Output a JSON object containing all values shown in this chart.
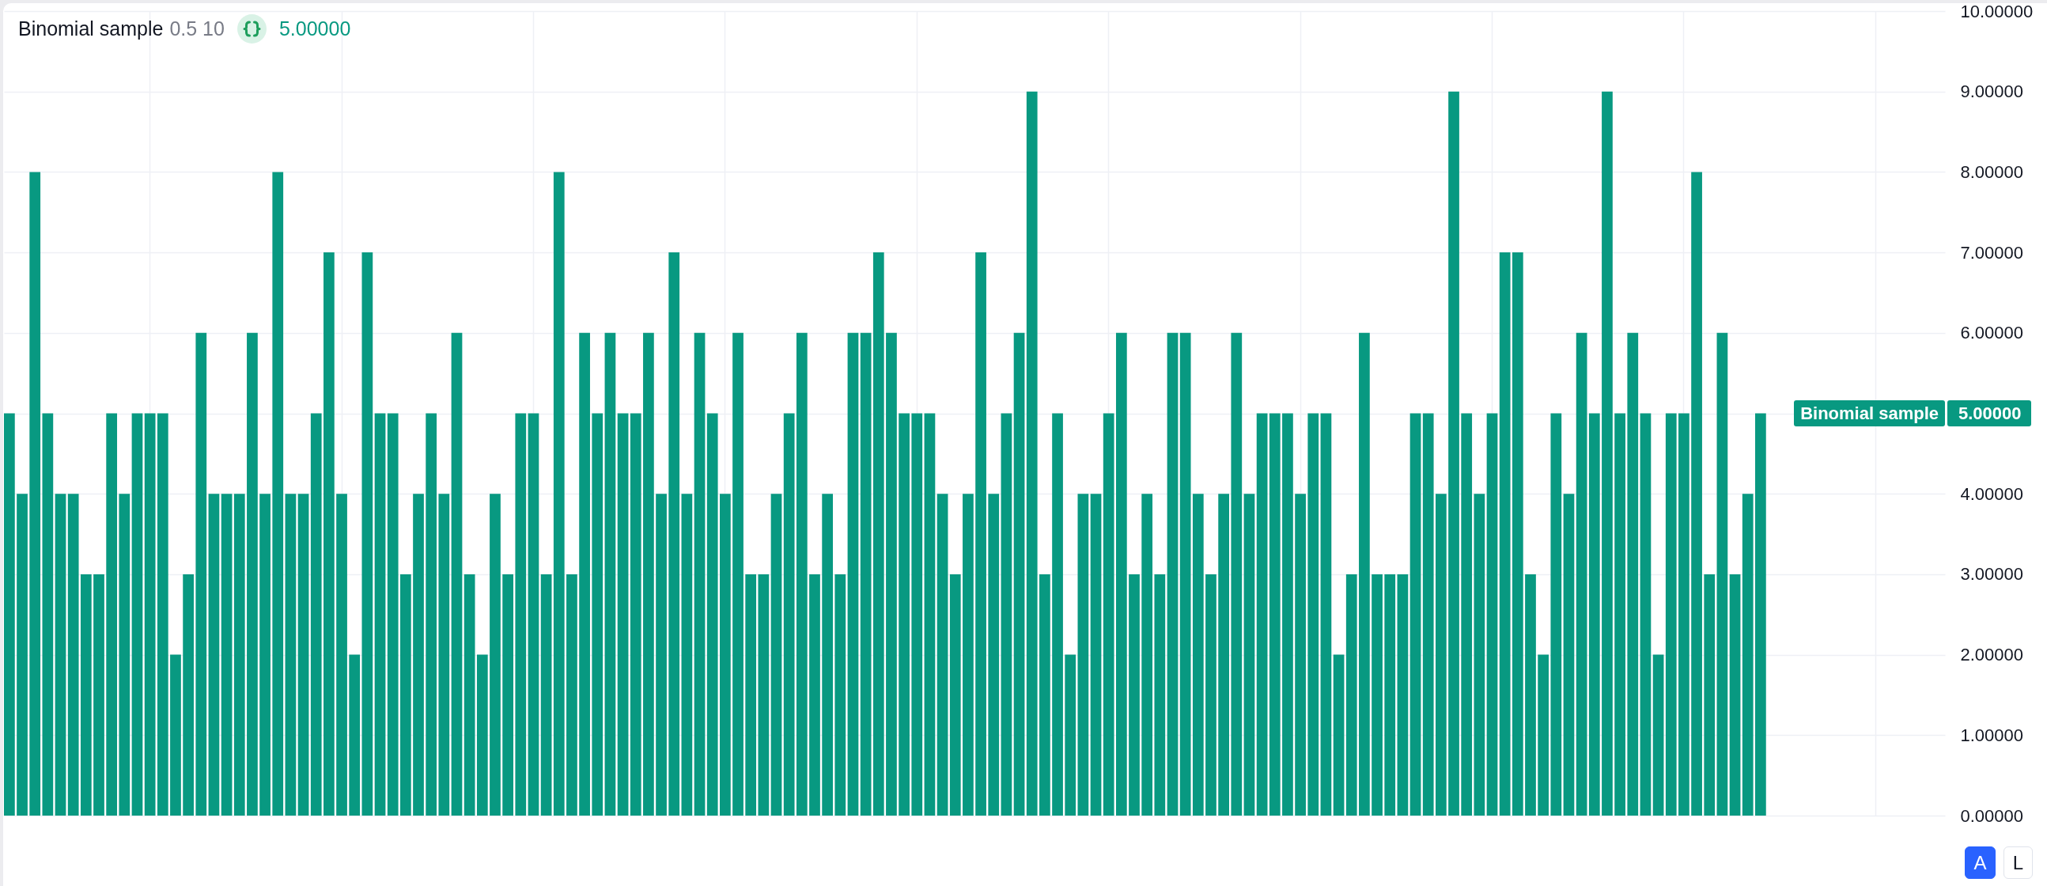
{
  "chart_data": {
    "type": "bar",
    "title": "Binomial sample",
    "subtitle": "0.5 10",
    "categories": [
      null,
      null,
      null,
      null,
      null,
      null,
      null,
      null,
      null,
      null,
      null,
      null,
      null,
      null,
      null,
      null,
      null,
      null,
      null,
      null,
      null,
      null,
      null,
      null,
      null,
      null,
      null,
      null,
      null,
      null,
      null,
      null,
      null,
      null,
      null,
      null,
      null,
      null,
      null,
      null,
      null,
      null,
      null,
      null,
      null,
      null,
      null,
      null,
      null,
      null,
      null,
      null,
      null,
      null,
      null,
      null,
      null,
      null,
      null,
      null,
      null,
      null,
      null,
      null,
      null,
      null,
      null,
      null,
      null,
      null,
      null,
      null,
      null,
      null,
      null,
      null,
      null,
      null,
      null,
      null,
      null,
      null,
      null,
      null,
      null,
      null,
      null,
      null,
      null,
      null,
      null,
      null,
      null,
      null,
      null,
      null,
      null,
      null,
      null,
      null,
      null,
      null,
      null,
      null,
      null,
      null,
      null,
      null,
      null,
      null,
      null,
      null,
      null,
      null,
      null,
      null,
      null,
      null,
      null,
      null,
      null,
      null,
      null,
      null,
      null,
      null,
      null,
      null,
      null,
      null,
      null,
      null,
      null,
      null,
      null,
      null,
      null,
      null,
      null,
      null,
      null,
      null,
      null,
      null,
      null,
      null,
      null,
      null,
      null,
      null,
      null,
      null
    ],
    "values": [
      5,
      4,
      8,
      5,
      4,
      4,
      3,
      3,
      5,
      4,
      5,
      5,
      5,
      2,
      3,
      6,
      4,
      4,
      4,
      6,
      4,
      8,
      4,
      4,
      5,
      7,
      4,
      2,
      7,
      5,
      5,
      3,
      4,
      5,
      4,
      6,
      3,
      2,
      4,
      3,
      5,
      5,
      3,
      8,
      3,
      6,
      5,
      6,
      5,
      5,
      6,
      4,
      7,
      4,
      6,
      5,
      4,
      6,
      3,
      3,
      4,
      5,
      6,
      3,
      4,
      3,
      6,
      6,
      7,
      6,
      5,
      5,
      5,
      4,
      3,
      4,
      7,
      4,
      5,
      6,
      9,
      3,
      5,
      2,
      4,
      4,
      5,
      6,
      3,
      4,
      3,
      6,
      6,
      4,
      3,
      4,
      6,
      4,
      5,
      5,
      5,
      4,
      5,
      5,
      2,
      3,
      6,
      3,
      3,
      3,
      5,
      5,
      4,
      9,
      5,
      4,
      5,
      7,
      7,
      3,
      2,
      5,
      4,
      6,
      5,
      9,
      5,
      6,
      5,
      2,
      5,
      5,
      8,
      3,
      6,
      3,
      4,
      5,
      null,
      null,
      null,
      null,
      null,
      null,
      null,
      null,
      null,
      null,
      null,
      null,
      null,
      null
    ],
    "color": "#089981",
    "ylim": [
      0,
      10
    ],
    "yticks": [
      {
        "value": 0,
        "label": "0.00000"
      },
      {
        "value": 1,
        "label": "1.00000"
      },
      {
        "value": 2,
        "label": "2.00000"
      },
      {
        "value": 3,
        "label": "3.00000"
      },
      {
        "value": 4,
        "label": "4.00000"
      },
      {
        "value": 5,
        "label": null
      },
      {
        "value": 6,
        "label": "6.00000"
      },
      {
        "value": 7,
        "label": "7.00000"
      },
      {
        "value": 8,
        "label": "8.00000"
      },
      {
        "value": 9,
        "label": "9.00000"
      },
      {
        "value": 10,
        "label": "10.00000"
      }
    ],
    "grid": true,
    "annotations": [
      "5.00000",
      "Binomial sample",
      "5.00000",
      "A",
      "L"
    ]
  }
}
